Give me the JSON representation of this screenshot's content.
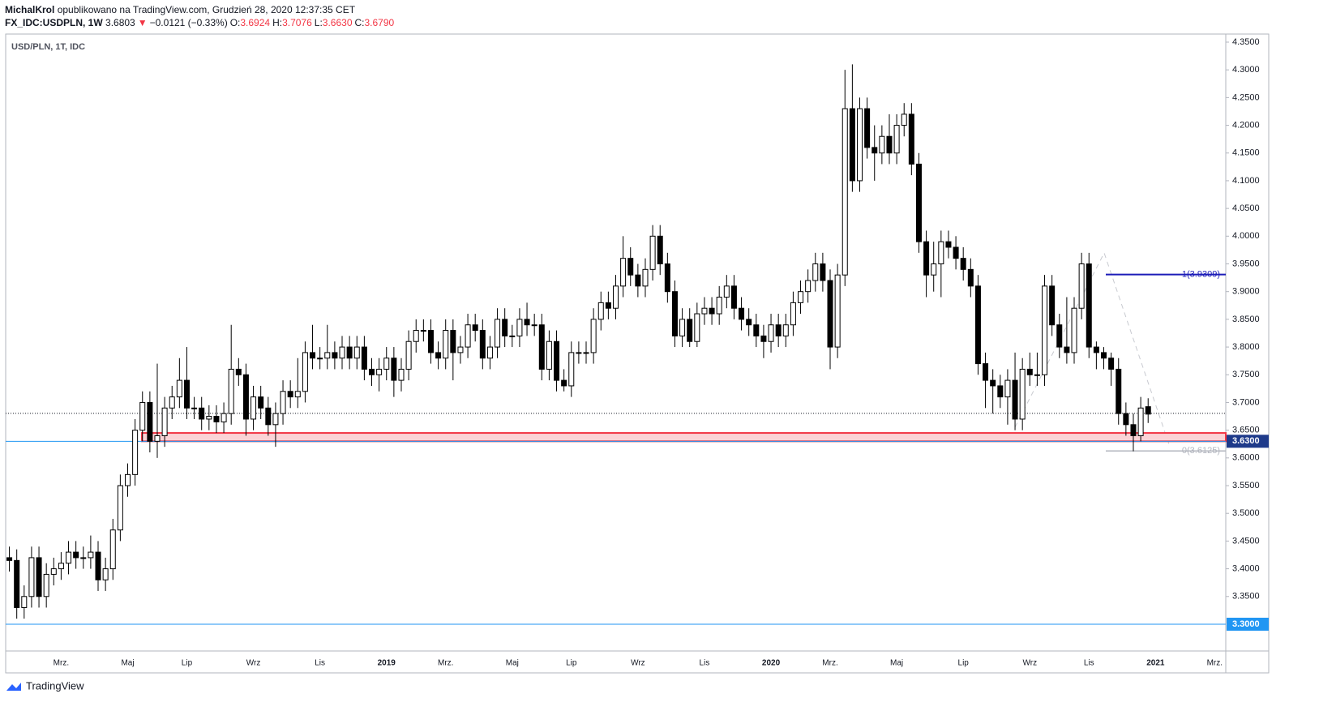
{
  "header": {
    "author": "MichalKrol",
    "published": "opublikowano na TradingView.com, Grudzień 28, 2020 12:37:35 CET",
    "symbol": "FX_IDC:USDPLN, 1W",
    "direction": "▼",
    "change": "−0.0121 (−0.33%)",
    "ohlc": [
      {
        "label": "O:",
        "value": "3.6924"
      },
      {
        "label": "H:",
        "value": "3.7076"
      },
      {
        "label": "L:",
        "value": "3.6630"
      },
      {
        "label": "C:",
        "value": "3.6790"
      }
    ]
  },
  "footer": "TradingView",
  "chart_data": {
    "type": "candlestick",
    "title": "USD/PLN, 1T, IDC",
    "categories": [
      null,
      null,
      null,
      null,
      null,
      null,
      null,
      "Mrz.",
      null,
      null,
      null,
      null,
      null,
      null,
      null,
      null,
      "Maj",
      null,
      null,
      null,
      null,
      null,
      null,
      null,
      "Lip",
      null,
      null,
      null,
      null,
      null,
      null,
      null,
      null,
      "Wrz",
      null,
      null,
      null,
      null,
      null,
      null,
      null,
      null,
      "Lis",
      null,
      null,
      null,
      null,
      null,
      null,
      null,
      null,
      "2019",
      null,
      null,
      null,
      null,
      null,
      null,
      null,
      "Mrz.",
      null,
      null,
      null,
      null,
      null,
      null,
      null,
      null,
      "Maj",
      null,
      null,
      null,
      null,
      null,
      null,
      null,
      "Lip",
      null,
      null,
      null,
      null,
      null,
      null,
      null,
      null,
      "Wrz",
      null,
      null,
      null,
      null,
      null,
      null,
      null,
      null,
      "Lis",
      null,
      null,
      null,
      null,
      null,
      null,
      null,
      null,
      "2020",
      null,
      null,
      null,
      null,
      null,
      null,
      null,
      "Mrz.",
      null,
      null,
      null,
      null,
      null,
      null,
      null,
      null,
      "Maj",
      null,
      null,
      null,
      null,
      null,
      null,
      null,
      null,
      "Lip",
      null,
      null,
      null,
      null,
      null,
      null,
      null,
      null,
      "Wrz",
      null,
      null,
      null,
      null,
      null,
      null,
      null,
      "Lis",
      null,
      null,
      null,
      null,
      null,
      null,
      null,
      null,
      "2021",
      null,
      null,
      null,
      null,
      null,
      null,
      null,
      "Mrz.",
      null
    ],
    "open": [
      3.42,
      3.415,
      3.33,
      3.35,
      3.42,
      3.35,
      3.39,
      3.4,
      3.41,
      3.43,
      3.42,
      3.42,
      3.43,
      3.38,
      3.4,
      3.47,
      3.55,
      3.57,
      3.65,
      3.7,
      3.63,
      3.64,
      3.69,
      3.71,
      3.74,
      3.69,
      3.69,
      3.67,
      3.675,
      3.665,
      3.68,
      3.76,
      3.75,
      3.67,
      3.71,
      3.69,
      3.66,
      3.68,
      3.72,
      3.71,
      3.72,
      3.79,
      3.78,
      3.78,
      3.79,
      3.78,
      3.8,
      3.78,
      3.8,
      3.76,
      3.75,
      3.76,
      3.78,
      3.74,
      3.76,
      3.81,
      3.83,
      3.83,
      3.79,
      3.78,
      3.83,
      3.79,
      3.8,
      3.84,
      3.83,
      3.78,
      3.8,
      3.85,
      3.82,
      3.82,
      3.85,
      3.84,
      3.84,
      3.76,
      3.81,
      3.74,
      3.73,
      3.79,
      3.79,
      3.79,
      3.85,
      3.88,
      3.87,
      3.91,
      3.96,
      3.93,
      3.91,
      3.94,
      4.0,
      3.95,
      3.9,
      3.82,
      3.85,
      3.81,
      3.86,
      3.87,
      3.86,
      3.89,
      3.91,
      3.87,
      3.85,
      3.84,
      3.82,
      3.81,
      3.84,
      3.82,
      3.84,
      3.88,
      3.9,
      3.92,
      3.95,
      3.92,
      3.8,
      3.93,
      4.23,
      4.1,
      4.23,
      4.16,
      4.15,
      4.18,
      4.15,
      4.2,
      4.22,
      4.13,
      3.99,
      3.93,
      3.95,
      3.99,
      3.98,
      3.96,
      3.94,
      3.91,
      3.77,
      3.74,
      3.73,
      3.71,
      3.74,
      3.67,
      3.76,
      3.75,
      3.75,
      3.91,
      3.84,
      3.8,
      3.79,
      3.87,
      3.95,
      3.8,
      3.79,
      3.78,
      3.76,
      3.68,
      3.66,
      3.64,
      3.6924,
      null,
      null,
      null,
      null,
      null,
      null,
      null,
      null,
      null,
      null
    ],
    "high": [
      3.44,
      3.435,
      3.37,
      3.44,
      3.44,
      3.41,
      3.42,
      3.43,
      3.45,
      3.45,
      3.44,
      3.46,
      3.45,
      3.42,
      3.49,
      3.57,
      3.59,
      3.67,
      3.72,
      3.72,
      3.77,
      3.71,
      3.73,
      3.78,
      3.8,
      3.71,
      3.71,
      3.695,
      3.695,
      3.7,
      3.84,
      3.78,
      3.77,
      3.73,
      3.73,
      3.71,
      3.7,
      3.74,
      3.74,
      3.78,
      3.81,
      3.84,
      3.8,
      3.84,
      3.81,
      3.82,
      3.82,
      3.82,
      3.82,
      3.78,
      3.78,
      3.8,
      3.8,
      3.78,
      3.83,
      3.85,
      3.85,
      3.85,
      3.81,
      3.85,
      3.85,
      3.82,
      3.86,
      3.86,
      3.85,
      3.82,
      3.87,
      3.87,
      3.84,
      3.87,
      3.88,
      3.86,
      3.86,
      3.83,
      3.83,
      3.76,
      3.81,
      3.81,
      3.81,
      3.87,
      3.9,
      3.9,
      3.93,
      4.0,
      3.98,
      3.95,
      3.96,
      4.02,
      4.02,
      3.97,
      3.92,
      3.87,
      3.87,
      3.88,
      3.89,
      3.89,
      3.91,
      3.93,
      3.93,
      3.89,
      3.87,
      3.86,
      3.84,
      3.86,
      3.86,
      3.86,
      3.9,
      3.92,
      3.94,
      3.97,
      3.97,
      3.94,
      3.95,
      4.3,
      4.31,
      4.25,
      4.25,
      4.2,
      4.2,
      4.22,
      4.22,
      4.24,
      4.24,
      4.15,
      4.01,
      3.99,
      4.01,
      4.01,
      4.0,
      3.98,
      3.96,
      3.93,
      3.79,
      3.76,
      3.75,
      3.76,
      3.79,
      3.78,
      3.79,
      3.79,
      3.93,
      3.93,
      3.86,
      3.89,
      3.89,
      3.97,
      3.97,
      3.81,
      3.8,
      3.79,
      3.78,
      3.7,
      3.68,
      3.71,
      3.7076,
      null,
      null,
      null,
      null,
      null,
      null,
      null,
      null,
      null,
      null
    ],
    "low": [
      3.395,
      3.31,
      3.31,
      3.33,
      3.33,
      3.33,
      3.37,
      3.38,
      3.39,
      3.4,
      3.4,
      3.4,
      3.36,
      3.36,
      3.38,
      3.45,
      3.53,
      3.55,
      3.63,
      3.61,
      3.6,
      3.62,
      3.67,
      3.69,
      3.67,
      3.67,
      3.65,
      3.65,
      3.645,
      3.645,
      3.66,
      3.73,
      3.64,
      3.65,
      3.67,
      3.64,
      3.62,
      3.66,
      3.69,
      3.69,
      3.7,
      3.76,
      3.76,
      3.76,
      3.76,
      3.76,
      3.76,
      3.76,
      3.74,
      3.73,
      3.72,
      3.74,
      3.71,
      3.72,
      3.74,
      3.79,
      3.81,
      3.77,
      3.76,
      3.76,
      3.74,
      3.77,
      3.78,
      3.81,
      3.76,
      3.76,
      3.78,
      3.8,
      3.8,
      3.8,
      3.82,
      3.82,
      3.74,
      3.74,
      3.72,
      3.72,
      3.71,
      3.77,
      3.77,
      3.77,
      3.83,
      3.85,
      3.85,
      3.89,
      3.91,
      3.89,
      3.89,
      3.92,
      3.93,
      3.88,
      3.8,
      3.8,
      3.8,
      3.8,
      3.84,
      3.84,
      3.84,
      3.87,
      3.85,
      3.83,
      3.82,
      3.8,
      3.78,
      3.79,
      3.8,
      3.8,
      3.82,
      3.86,
      3.88,
      3.9,
      3.9,
      3.76,
      3.78,
      3.91,
      4.08,
      4.08,
      4.14,
      4.1,
      4.13,
      4.13,
      4.13,
      4.18,
      4.11,
      3.97,
      3.89,
      3.9,
      3.89,
      3.96,
      3.94,
      3.92,
      3.89,
      3.75,
      3.69,
      3.68,
      3.69,
      3.66,
      3.65,
      3.65,
      3.73,
      3.73,
      3.73,
      3.82,
      3.78,
      3.77,
      3.77,
      3.85,
      3.78,
      3.76,
      3.76,
      3.73,
      3.66,
      3.64,
      3.612,
      3.63,
      3.663,
      null,
      null,
      null,
      null,
      null,
      null,
      null,
      null,
      null,
      null
    ],
    "close": [
      3.415,
      3.33,
      3.35,
      3.42,
      3.35,
      3.39,
      3.4,
      3.41,
      3.43,
      3.42,
      3.42,
      3.43,
      3.38,
      3.4,
      3.47,
      3.55,
      3.57,
      3.65,
      3.7,
      3.63,
      3.64,
      3.69,
      3.71,
      3.74,
      3.69,
      3.69,
      3.67,
      3.675,
      3.665,
      3.68,
      3.76,
      3.75,
      3.67,
      3.71,
      3.69,
      3.66,
      3.68,
      3.72,
      3.71,
      3.72,
      3.79,
      3.78,
      3.78,
      3.79,
      3.78,
      3.8,
      3.78,
      3.8,
      3.76,
      3.75,
      3.76,
      3.78,
      3.74,
      3.76,
      3.81,
      3.83,
      3.83,
      3.79,
      3.78,
      3.83,
      3.79,
      3.8,
      3.84,
      3.83,
      3.78,
      3.8,
      3.85,
      3.82,
      3.82,
      3.85,
      3.84,
      3.84,
      3.76,
      3.81,
      3.74,
      3.73,
      3.79,
      3.79,
      3.79,
      3.85,
      3.88,
      3.87,
      3.91,
      3.96,
      3.93,
      3.91,
      3.94,
      4.0,
      3.95,
      3.9,
      3.82,
      3.85,
      3.81,
      3.86,
      3.87,
      3.86,
      3.89,
      3.91,
      3.87,
      3.85,
      3.84,
      3.82,
      3.81,
      3.84,
      3.82,
      3.84,
      3.88,
      3.9,
      3.92,
      3.95,
      3.92,
      3.8,
      3.93,
      4.23,
      4.1,
      4.23,
      4.16,
      4.15,
      4.18,
      4.15,
      4.2,
      4.22,
      4.13,
      3.99,
      3.93,
      3.95,
      3.99,
      3.98,
      3.96,
      3.94,
      3.91,
      3.77,
      3.74,
      3.73,
      3.71,
      3.74,
      3.67,
      3.76,
      3.75,
      3.75,
      3.91,
      3.84,
      3.8,
      3.79,
      3.87,
      3.95,
      3.8,
      3.79,
      3.78,
      3.76,
      3.68,
      3.66,
      3.64,
      3.69,
      3.679,
      null,
      null,
      null,
      null,
      null,
      null,
      null,
      null,
      null,
      null
    ],
    "ylim": [
      3.2517,
      4.3646
    ],
    "yticks": [
      {
        "value": 3.35,
        "label": "3.3500"
      },
      {
        "value": 3.4,
        "label": "3.4000"
      },
      {
        "value": 3.45,
        "label": "3.4500"
      },
      {
        "value": 3.5,
        "label": "3.5000"
      },
      {
        "value": 3.55,
        "label": "3.5500"
      },
      {
        "value": 3.6,
        "label": "3.6000"
      },
      {
        "value": 3.65,
        "label": "3.6500"
      },
      {
        "value": 3.7,
        "label": "3.7000"
      },
      {
        "value": 3.75,
        "label": "3.7500"
      },
      {
        "value": 3.8,
        "label": "3.8000"
      },
      {
        "value": 3.85,
        "label": "3.8500"
      },
      {
        "value": 3.9,
        "label": "3.9000"
      },
      {
        "value": 3.95,
        "label": "3.9500"
      },
      {
        "value": 4.0,
        "label": "4.0000"
      },
      {
        "value": 4.05,
        "label": "4.0500"
      },
      {
        "value": 4.1,
        "label": "4.1000"
      },
      {
        "value": 4.15,
        "label": "4.1500"
      },
      {
        "value": 4.2,
        "label": "4.2000"
      },
      {
        "value": 4.25,
        "label": "4.2500"
      },
      {
        "value": 4.3,
        "label": "4.3000"
      },
      {
        "value": 4.35,
        "label": "4.3500"
      }
    ],
    "last_price": 3.6803,
    "zone": {
      "from": 3.63,
      "to": 3.645,
      "color": "#f23645"
    },
    "hlines": [
      {
        "value": 3.63,
        "label": "3.6300",
        "color": "#2196f3"
      },
      {
        "value": 3.3,
        "label": "3.3000",
        "color": "#2196f3"
      }
    ],
    "fib_levels": [
      {
        "value": 3.9309,
        "label": "1(3.9309)",
        "color": "#1c1cb8"
      },
      {
        "value": 3.6125,
        "label": "0(3.6125)",
        "color": "#b2b5be"
      }
    ]
  }
}
